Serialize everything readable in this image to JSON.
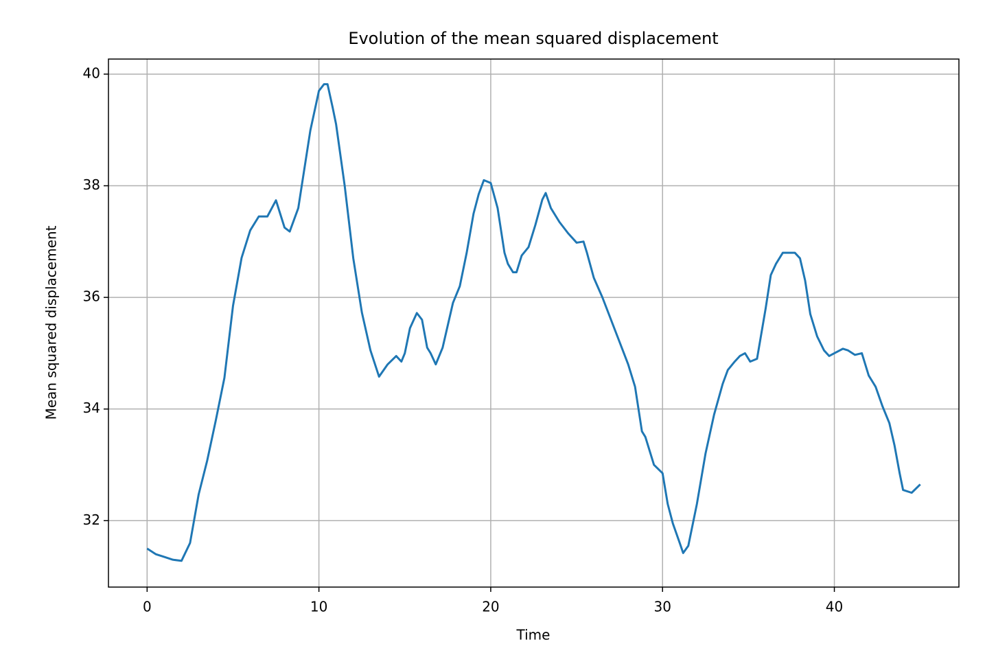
{
  "chart_data": {
    "type": "line",
    "title": "Evolution of the mean squared displacement",
    "x_label": "Time",
    "y_label": "Mean squared displacement",
    "color": "#1f77b4",
    "grid": true,
    "x": [
      0,
      0.5,
      1.0,
      1.5,
      2.0,
      2.5,
      3.0,
      3.5,
      4.0,
      4.5,
      5.0,
      5.5,
      6.0,
      6.5,
      7.0,
      7.5,
      8.0,
      8.3,
      8.8,
      9.0,
      9.5,
      10.0,
      10.3,
      10.5,
      10.8,
      11.0,
      11.5,
      12.0,
      12.5,
      13.0,
      13.5,
      14.0,
      14.5,
      14.8,
      15.0,
      15.3,
      15.7,
      16.0,
      16.3,
      16.5,
      16.8,
      17.2,
      17.5,
      17.8,
      18.2,
      18.6,
      19.0,
      19.3,
      19.6,
      20.0,
      20.4,
      20.8,
      21.0,
      21.3,
      21.5,
      21.8,
      22.2,
      22.6,
      23.0,
      23.2,
      23.5,
      24.0,
      24.5,
      25.0,
      25.4,
      25.6,
      26.0,
      26.5,
      27.0,
      27.5,
      28.0,
      28.4,
      28.8,
      29.0,
      29.5,
      30.0,
      30.3,
      30.6,
      31.0,
      31.2,
      31.5,
      32.0,
      32.5,
      33.0,
      33.5,
      33.8,
      34.2,
      34.5,
      34.8,
      35.1,
      35.5,
      36.0,
      36.3,
      36.6,
      37.0,
      37.3,
      37.7,
      38.0,
      38.3,
      38.6,
      39.0,
      39.4,
      39.7,
      40.0,
      40.5,
      40.8,
      41.2,
      41.6,
      42.0,
      42.4,
      42.8,
      43.2,
      43.5,
      43.8,
      44.0,
      44.5,
      45.0
    ],
    "values": [
      31.5,
      31.4,
      31.35,
      31.3,
      31.28,
      31.6,
      32.47,
      33.08,
      33.8,
      34.56,
      35.85,
      36.71,
      37.2,
      37.45,
      37.45,
      37.74,
      37.25,
      37.18,
      37.6,
      38.0,
      38.99,
      39.7,
      39.82,
      39.82,
      39.4,
      39.1,
      38.0,
      36.7,
      35.73,
      35.05,
      34.58,
      34.8,
      34.95,
      34.85,
      35.0,
      35.45,
      35.72,
      35.6,
      35.1,
      35.0,
      34.8,
      35.1,
      35.5,
      35.9,
      36.2,
      36.8,
      37.5,
      37.85,
      38.1,
      38.05,
      37.6,
      36.8,
      36.6,
      36.45,
      36.45,
      36.75,
      36.9,
      37.3,
      37.75,
      37.87,
      37.6,
      37.35,
      37.15,
      36.98,
      37.0,
      36.8,
      36.35,
      36.0,
      35.6,
      35.2,
      34.8,
      34.4,
      33.6,
      33.5,
      33.0,
      32.85,
      32.3,
      31.95,
      31.6,
      31.42,
      31.55,
      32.3,
      33.2,
      33.9,
      34.45,
      34.7,
      34.85,
      34.95,
      35.0,
      34.85,
      34.9,
      35.8,
      36.4,
      36.6,
      36.8,
      36.8,
      36.8,
      36.7,
      36.3,
      35.7,
      35.3,
      35.05,
      34.95,
      35.0,
      35.08,
      35.05,
      34.97,
      35.0,
      34.6,
      34.4,
      34.05,
      33.75,
      33.35,
      32.85,
      32.55,
      32.5,
      32.65
    ],
    "xlim": [
      -2.25,
      47.25
    ],
    "xticks": [
      0,
      10,
      20,
      30,
      40
    ],
    "ylim": [
      30.81,
      40.27
    ],
    "yticks": [
      32,
      34,
      36,
      38,
      40
    ]
  }
}
